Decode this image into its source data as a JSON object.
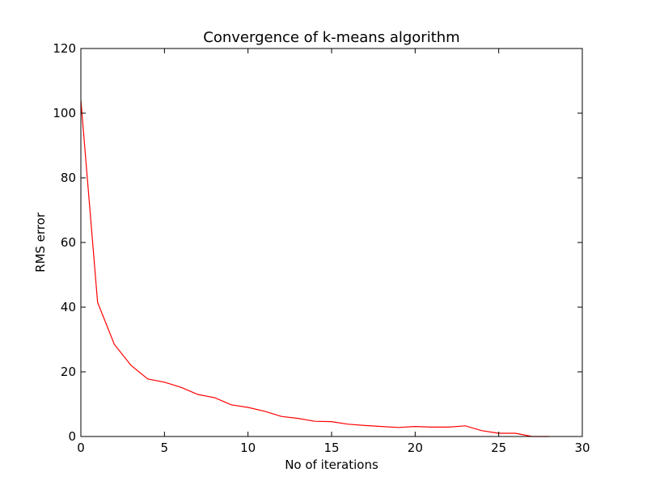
{
  "chart_data": {
    "type": "line",
    "title": "Convergence of k-means algorithm",
    "xlabel": "No of iterations",
    "ylabel": "RMS error",
    "xlim": [
      0,
      30
    ],
    "ylim": [
      0,
      120
    ],
    "xticks": [
      0,
      5,
      10,
      15,
      20,
      25,
      30
    ],
    "yticks": [
      0,
      20,
      40,
      60,
      80,
      100,
      120
    ],
    "grid": false,
    "series": [
      {
        "color": "#ff0000",
        "x": [
          0,
          1,
          2,
          3,
          4,
          5,
          6,
          7,
          8,
          9,
          10,
          11,
          12,
          13,
          14,
          15,
          16,
          17,
          18,
          19,
          20,
          21,
          22,
          23,
          24,
          25,
          26,
          27,
          28
        ],
        "y": [
          104,
          41.5,
          28.5,
          22,
          17.8,
          16.8,
          15.2,
          13,
          12,
          9.8,
          9,
          7.8,
          6.2,
          5.6,
          4.7,
          4.6,
          3.8,
          3.4,
          3.1,
          2.8,
          3.1,
          2.9,
          2.9,
          3.3,
          1.8,
          1,
          1,
          0,
          0
        ]
      }
    ]
  }
}
